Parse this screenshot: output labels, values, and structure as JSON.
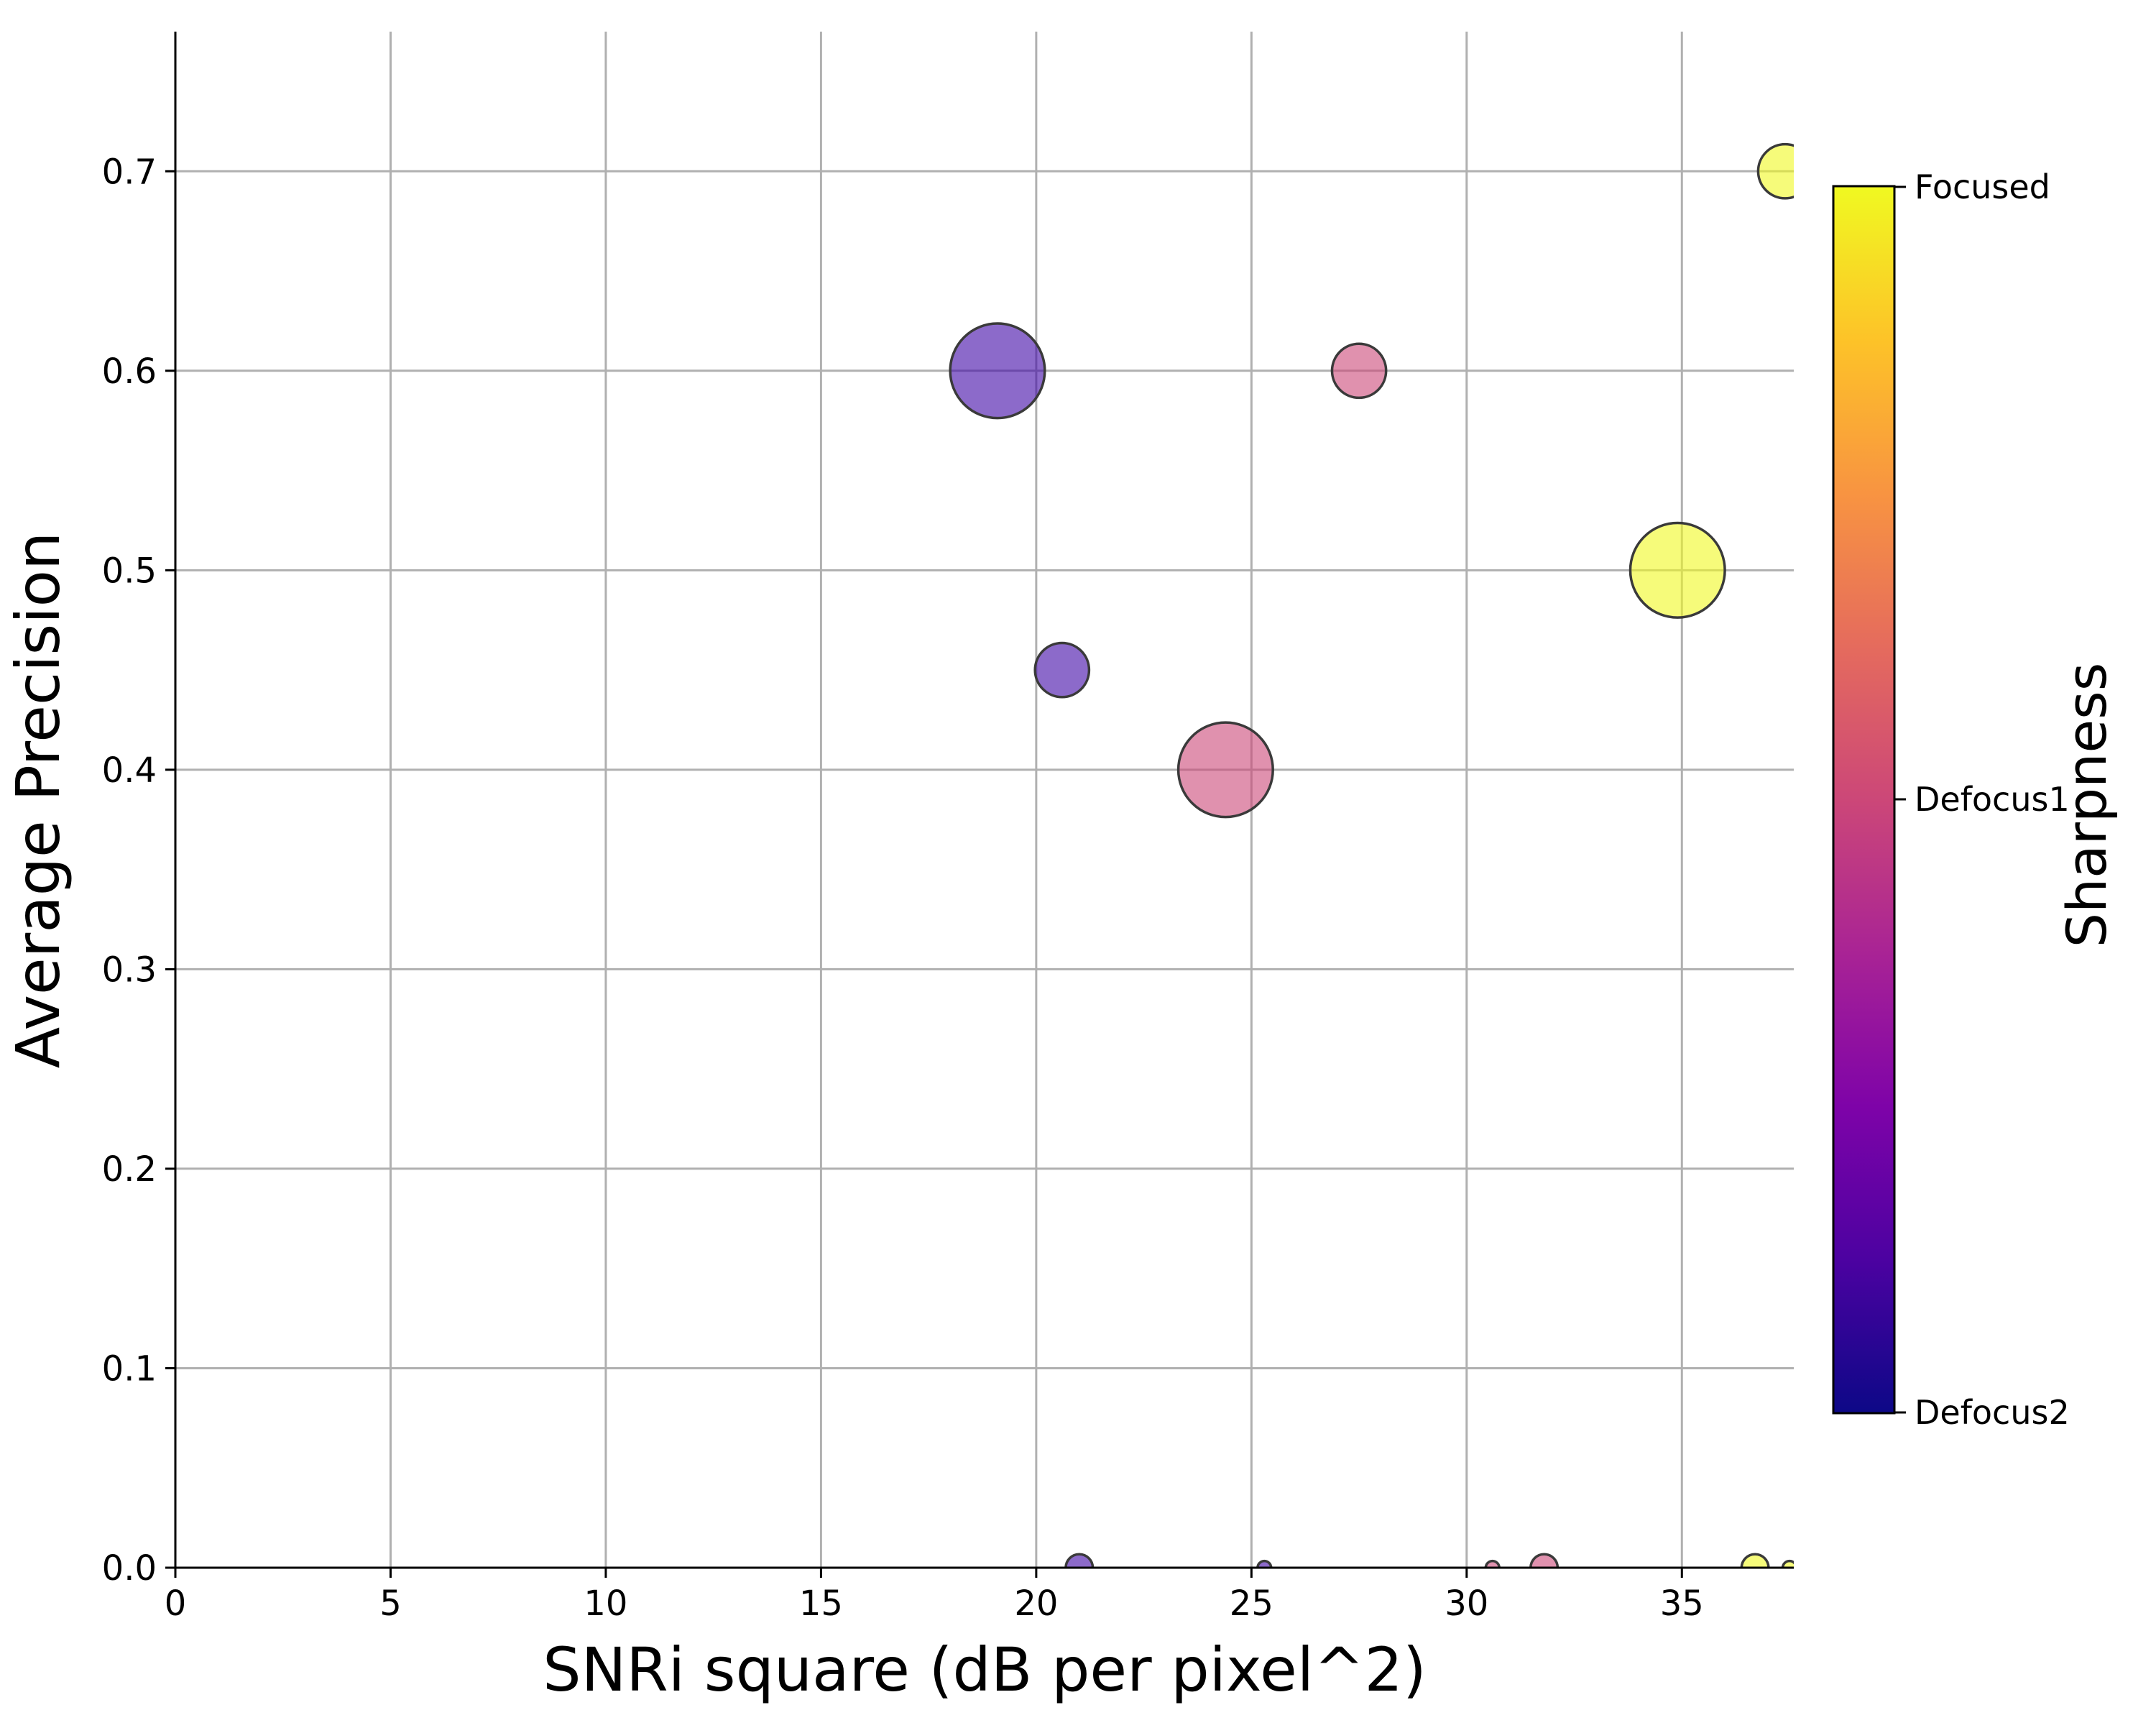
{
  "chart_data": {
    "type": "scatter",
    "title": "",
    "xlabel": "SNRi square (dB per pixel^2)",
    "ylabel": "Average Precision",
    "xlim": [
      0,
      37.6
    ],
    "ylim": [
      0,
      0.77
    ],
    "xticks": [
      0,
      5,
      10,
      15,
      20,
      25,
      30,
      35
    ],
    "xtick_labels": [
      "0",
      "5",
      "10",
      "15",
      "20",
      "25",
      "30",
      "35"
    ],
    "yticks": [
      0.0,
      0.1,
      0.2,
      0.3,
      0.4,
      0.5,
      0.6,
      0.7
    ],
    "ytick_labels": [
      "0.0",
      "0.1",
      "0.2",
      "0.3",
      "0.4",
      "0.5",
      "0.6",
      "0.7"
    ],
    "grid": true,
    "colormap": "plasma",
    "colorbar": {
      "title": "Sharpness",
      "tick_labels": [
        "Focused",
        "Defocus1",
        "Defocus2"
      ]
    },
    "points": [
      {
        "x": 19.1,
        "y": 0.6,
        "size": 4900,
        "sharpness": "Defocus2",
        "color": "#3f07a6"
      },
      {
        "x": 20.6,
        "y": 0.45,
        "size": 1600,
        "sharpness": "Defocus2",
        "color": "#3f07a6"
      },
      {
        "x": 21.0,
        "y": 0.0,
        "size": 400,
        "sharpness": "Defocus2",
        "color": "#3f07a6"
      },
      {
        "x": 25.3,
        "y": 0.0,
        "size": 100,
        "sharpness": "Defocus2",
        "color": "#3f07a6"
      },
      {
        "x": 24.4,
        "y": 0.4,
        "size": 4900,
        "sharpness": "Defocus1",
        "color": "#cc4778"
      },
      {
        "x": 27.5,
        "y": 0.6,
        "size": 1600,
        "sharpness": "Defocus1",
        "color": "#cc4778"
      },
      {
        "x": 30.6,
        "y": 0.0,
        "size": 100,
        "sharpness": "Defocus1",
        "color": "#cc4778"
      },
      {
        "x": 31.8,
        "y": 0.0,
        "size": 400,
        "sharpness": "Defocus1",
        "color": "#cc4778"
      },
      {
        "x": 34.9,
        "y": 0.5,
        "size": 4900,
        "sharpness": "Focused",
        "color": "#f0f921"
      },
      {
        "x": 37.4,
        "y": 0.7,
        "size": 1600,
        "sharpness": "Focused",
        "color": "#f0f921"
      },
      {
        "x": 36.7,
        "y": 0.0,
        "size": 400,
        "sharpness": "Focused",
        "color": "#f0f921"
      },
      {
        "x": 37.5,
        "y": 0.0,
        "size": 100,
        "sharpness": "Focused",
        "color": "#f0f921"
      }
    ]
  }
}
